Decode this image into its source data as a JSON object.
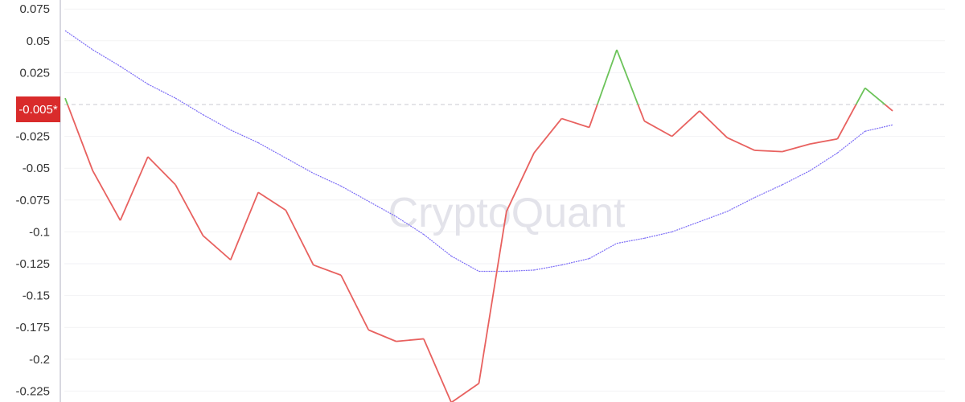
{
  "watermark": "CryptoQuant",
  "chart_data": {
    "type": "line",
    "ylim": [
      -0.234,
      0.075
    ],
    "yticks": [
      "0.075",
      "0.05",
      "0.025",
      "-0.025",
      "-0.05",
      "-0.075",
      "-0.1",
      "-0.125",
      "-0.15",
      "-0.175",
      "-0.2",
      "-0.225"
    ],
    "ytick_values": [
      0.075,
      0.05,
      0.025,
      -0.025,
      -0.05,
      -0.075,
      -0.1,
      -0.125,
      -0.15,
      -0.175,
      -0.2,
      -0.225
    ],
    "grid": true,
    "baseline": 0,
    "last_value_label": "-0.005*",
    "colors": {
      "above": "#6cc35a",
      "below": "#e8615f",
      "ma": "#7b6cf6",
      "label_bg": "#d92b2b"
    },
    "series": [
      {
        "values": [
          0.005,
          -0.052,
          -0.091,
          -0.041,
          -0.063,
          -0.103,
          -0.122,
          -0.069,
          -0.083,
          -0.126,
          -0.134,
          -0.177,
          -0.186,
          -0.184,
          -0.234,
          -0.219,
          -0.084,
          -0.038,
          -0.011,
          -0.018,
          0.043,
          -0.013,
          -0.025,
          -0.005,
          -0.026,
          -0.036,
          -0.037,
          -0.031,
          -0.027,
          0.013,
          -0.005
        ]
      },
      {
        "style": "dotted",
        "values": [
          0.058,
          0.043,
          0.03,
          0.016,
          0.005,
          -0.008,
          -0.02,
          -0.03,
          -0.042,
          -0.054,
          -0.064,
          -0.076,
          -0.088,
          -0.102,
          -0.119,
          -0.131,
          -0.131,
          -0.13,
          -0.126,
          -0.121,
          -0.109,
          -0.105,
          -0.1,
          -0.092,
          -0.084,
          -0.073,
          -0.063,
          -0.052,
          -0.038,
          -0.021,
          -0.016
        ]
      }
    ]
  }
}
